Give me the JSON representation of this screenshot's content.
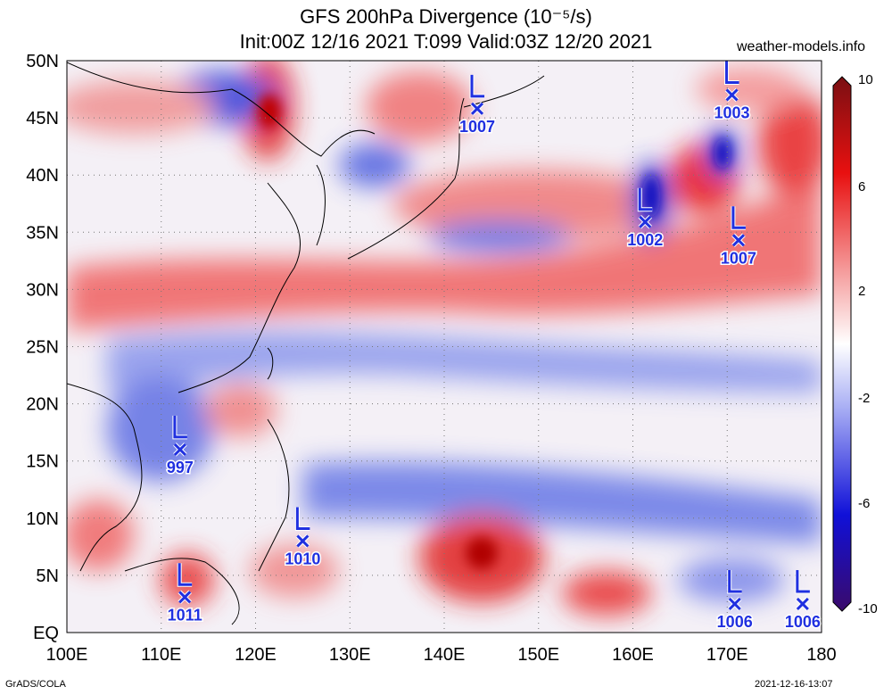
{
  "header": {
    "title": "GFS 200hPa Divergence (10⁻⁵/s)",
    "subtitle": "Init:00Z 12/16 2021 T:099 Valid:03Z 12/20 2021",
    "site": "weather-models.info"
  },
  "footer": {
    "left": "GrADS/COLA",
    "right": "2021-12-16-13:07"
  },
  "map": {
    "lon_range": [
      100,
      180
    ],
    "lat_range": [
      0,
      50
    ],
    "lon_ticks": [
      "100E",
      "110E",
      "120E",
      "130E",
      "140E",
      "150E",
      "160E",
      "170E",
      "180"
    ],
    "lat_ticks": [
      "EQ",
      "5N",
      "10N",
      "15N",
      "20N",
      "25N",
      "30N",
      "35N",
      "40N",
      "45N",
      "50N"
    ]
  },
  "colorbar": {
    "labels": [
      "10",
      "6",
      "2",
      "-2",
      "-6",
      "-10"
    ],
    "colors": [
      "#7a0f12",
      "#e81010",
      "#f48282",
      "#ffffff",
      "#8a94f0",
      "#1010d8",
      "#3a0a6a"
    ]
  },
  "lows": [
    {
      "lon": 143.5,
      "lat": 45.8,
      "value": "1007"
    },
    {
      "lon": 170.5,
      "lat": 47.0,
      "value": "1003"
    },
    {
      "lon": 161.3,
      "lat": 35.9,
      "value": "1002"
    },
    {
      "lon": 171.2,
      "lat": 34.3,
      "value": "1007"
    },
    {
      "lon": 112.0,
      "lat": 16.0,
      "value": "997"
    },
    {
      "lon": 125.0,
      "lat": 8.0,
      "value": "1010"
    },
    {
      "lon": 112.5,
      "lat": 3.1,
      "value": "1011"
    },
    {
      "lon": 170.8,
      "lat": 2.5,
      "value": "1006"
    },
    {
      "lon": 178.0,
      "lat": 2.5,
      "value": "1006"
    }
  ]
}
